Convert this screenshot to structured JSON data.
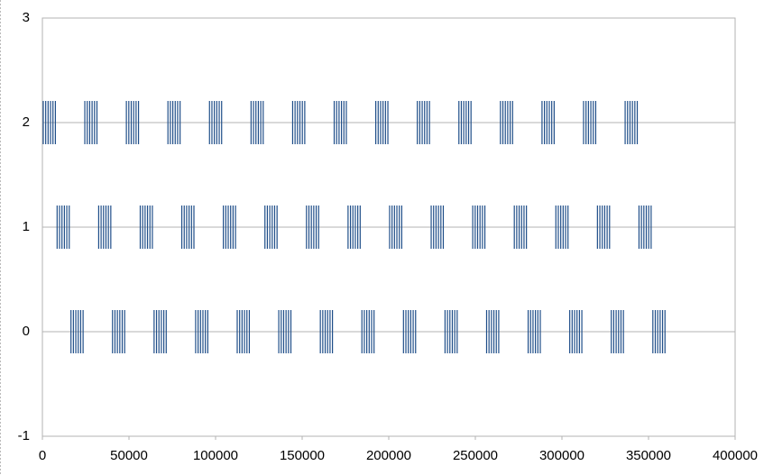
{
  "chart_data": {
    "type": "scatter",
    "marker": "vline",
    "grid": true,
    "xlim": [
      0,
      400000
    ],
    "xticks": [
      0,
      50000,
      100000,
      150000,
      200000,
      250000,
      300000,
      350000,
      400000
    ],
    "ylim": [
      -1,
      3
    ],
    "yticks": [
      -1,
      0,
      1,
      2,
      3
    ],
    "series": [
      {
        "color": "#1f4e89",
        "x": [
          500,
          1900,
          3300,
          4700,
          6100,
          7500,
          24500,
          25900,
          27300,
          28700,
          30100,
          31500,
          48500,
          49900,
          51300,
          52700,
          54100,
          55500,
          72500,
          73900,
          75300,
          76700,
          78100,
          79500,
          96500,
          97900,
          99300,
          100700,
          102100,
          103500,
          120500,
          121900,
          123300,
          124700,
          126100,
          127500,
          144500,
          145900,
          147300,
          148700,
          150100,
          151500,
          168500,
          169900,
          171300,
          172700,
          174100,
          175500,
          192500,
          193900,
          195300,
          196700,
          198100,
          199500,
          216500,
          217900,
          219300,
          220700,
          222100,
          223500,
          240500,
          241900,
          243300,
          244700,
          246100,
          247500,
          264500,
          265900,
          267300,
          268700,
          270100,
          271500,
          288500,
          289900,
          291300,
          292700,
          294100,
          295500,
          312500,
          313900,
          315300,
          316700,
          318100,
          319500,
          336500,
          337900,
          339300,
          340700,
          342100,
          343500
        ],
        "values": [
          2,
          2,
          2,
          2,
          2,
          2,
          2,
          2,
          2,
          2,
          2,
          2,
          2,
          2,
          2,
          2,
          2,
          2,
          2,
          2,
          2,
          2,
          2,
          2,
          2,
          2,
          2,
          2,
          2,
          2,
          2,
          2,
          2,
          2,
          2,
          2,
          2,
          2,
          2,
          2,
          2,
          2,
          2,
          2,
          2,
          2,
          2,
          2,
          2,
          2,
          2,
          2,
          2,
          2,
          2,
          2,
          2,
          2,
          2,
          2,
          2,
          2,
          2,
          2,
          2,
          2,
          2,
          2,
          2,
          2,
          2,
          2,
          2,
          2,
          2,
          2,
          2,
          2,
          2,
          2,
          2,
          2,
          2,
          2,
          2,
          2,
          2,
          2,
          2,
          2
        ]
      },
      {
        "color": "#1f4e89",
        "x": [
          8500,
          9900,
          11300,
          12700,
          14100,
          15500,
          32500,
          33900,
          35300,
          36700,
          38100,
          39500,
          56500,
          57900,
          59300,
          60700,
          62100,
          63500,
          80500,
          81900,
          83300,
          84700,
          86100,
          87500,
          104500,
          105900,
          107300,
          108700,
          110100,
          111500,
          128500,
          129900,
          131300,
          132700,
          134100,
          135500,
          152500,
          153900,
          155300,
          156700,
          158100,
          159500,
          176500,
          177900,
          179300,
          180700,
          182100,
          183500,
          200500,
          201900,
          203300,
          204700,
          206100,
          207500,
          224500,
          225900,
          227300,
          228700,
          230100,
          231500,
          248500,
          249900,
          251300,
          252700,
          254100,
          255500,
          272500,
          273900,
          275300,
          276700,
          278100,
          279500,
          296500,
          297900,
          299300,
          300700,
          302100,
          303500,
          320500,
          321900,
          323300,
          324700,
          326100,
          327500,
          344500,
          345900,
          347300,
          348700,
          350100,
          351500
        ],
        "values": [
          1,
          1,
          1,
          1,
          1,
          1,
          1,
          1,
          1,
          1,
          1,
          1,
          1,
          1,
          1,
          1,
          1,
          1,
          1,
          1,
          1,
          1,
          1,
          1,
          1,
          1,
          1,
          1,
          1,
          1,
          1,
          1,
          1,
          1,
          1,
          1,
          1,
          1,
          1,
          1,
          1,
          1,
          1,
          1,
          1,
          1,
          1,
          1,
          1,
          1,
          1,
          1,
          1,
          1,
          1,
          1,
          1,
          1,
          1,
          1,
          1,
          1,
          1,
          1,
          1,
          1,
          1,
          1,
          1,
          1,
          1,
          1,
          1,
          1,
          1,
          1,
          1,
          1,
          1,
          1,
          1,
          1,
          1,
          1,
          1,
          1,
          1,
          1,
          1,
          1
        ]
      },
      {
        "color": "#1f4e89",
        "x": [
          16500,
          17900,
          19300,
          20700,
          22100,
          23500,
          40500,
          41900,
          43300,
          44700,
          46100,
          47500,
          64500,
          65900,
          67300,
          68700,
          70100,
          71500,
          88500,
          89900,
          91300,
          92700,
          94100,
          95500,
          112500,
          113900,
          115300,
          116700,
          118100,
          119500,
          136500,
          137900,
          139300,
          140700,
          142100,
          143500,
          160500,
          161900,
          163300,
          164700,
          166100,
          167500,
          184500,
          185900,
          187300,
          188700,
          190100,
          191500,
          208500,
          209900,
          211300,
          212700,
          214100,
          215500,
          232500,
          233900,
          235300,
          236700,
          238100,
          239500,
          256500,
          257900,
          259300,
          260700,
          262100,
          263500,
          280500,
          281900,
          283300,
          284700,
          286100,
          287500,
          304500,
          305900,
          307300,
          308700,
          310100,
          311500,
          328500,
          329900,
          331300,
          332700,
          334100,
          335500,
          352500,
          353900,
          355300,
          356700,
          358100,
          359500
        ],
        "values": [
          0,
          0,
          0,
          0,
          0,
          0,
          0,
          0,
          0,
          0,
          0,
          0,
          0,
          0,
          0,
          0,
          0,
          0,
          0,
          0,
          0,
          0,
          0,
          0,
          0,
          0,
          0,
          0,
          0,
          0,
          0,
          0,
          0,
          0,
          0,
          0,
          0,
          0,
          0,
          0,
          0,
          0,
          0,
          0,
          0,
          0,
          0,
          0,
          0,
          0,
          0,
          0,
          0,
          0,
          0,
          0,
          0,
          0,
          0,
          0,
          0,
          0,
          0,
          0,
          0,
          0,
          0,
          0,
          0,
          0,
          0,
          0,
          0,
          0,
          0,
          0,
          0,
          0,
          0,
          0,
          0,
          0,
          0,
          0,
          0,
          0,
          0,
          0,
          0,
          0
        ]
      }
    ]
  }
}
